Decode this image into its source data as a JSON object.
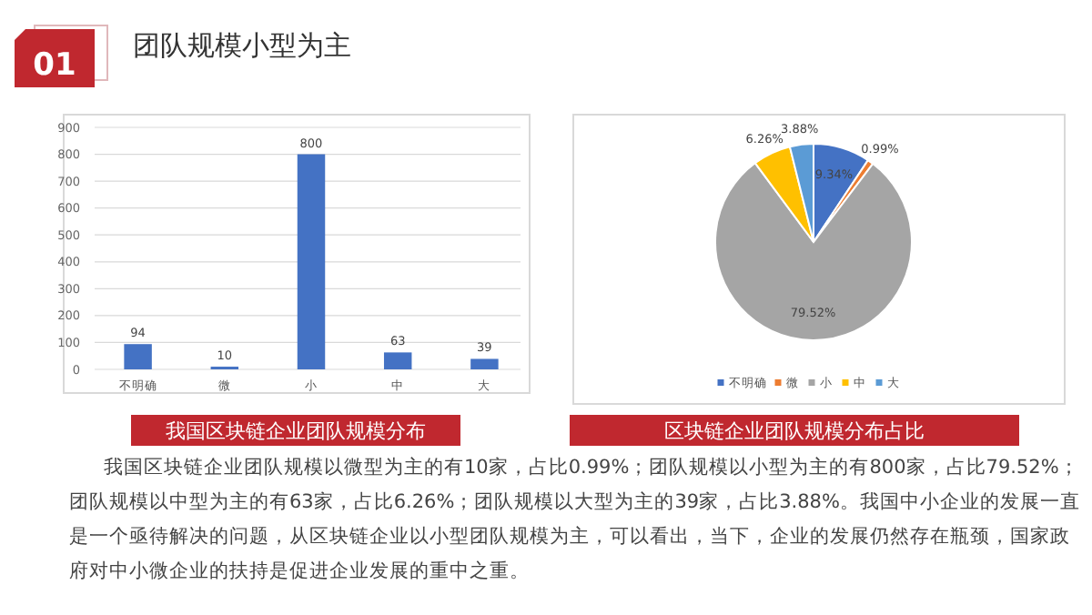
{
  "chart_data": [
    {
      "type": "bar",
      "title": "我国区块链企业团队规模分布",
      "categories": [
        "不明确",
        "微",
        "小",
        "中",
        "大"
      ],
      "values": [
        94,
        10,
        800,
        63,
        39
      ],
      "color": "#4472c4",
      "ylim": [
        0,
        900
      ],
      "yticks": [
        0,
        100,
        200,
        300,
        400,
        500,
        600,
        700,
        800,
        900
      ],
      "grid": "y",
      "data_labels": true,
      "annotations": [
        "01",
        "团队规模小型为主",
        "我国区块链企业团队规模以微型为主的有10家，占比0.99%；团队规模以小型为主的有800家，占比79.52%；团队规模以中型为主的有63家，占比6.26%；团队规模以大型为主的39家，占比3.88%。我国中小企业的发展一直是一个亟待解决的问题，从区块链企业以小型团队规模为主，可以看出，当下，企业的发展仍然存在瓶颈，国家政府对中小微企业的扶持是促进企业发展的重中之重。"
      ]
    },
    {
      "type": "pie",
      "title": "区块链企业团队规模分布占比",
      "categories": [
        "不明确",
        "微",
        "小",
        "中",
        "大"
      ],
      "values": [
        9.34,
        0.99,
        79.52,
        6.26,
        3.88
      ],
      "colors": [
        "#4472c4",
        "#ed7d31",
        "#a5a5a5",
        "#ffc000",
        "#5b9bd5"
      ],
      "value_labels": [
        "9.34%",
        "0.99%",
        "79.52%",
        "6.26%",
        "3.88%"
      ],
      "legend": "bottom"
    }
  ]
}
